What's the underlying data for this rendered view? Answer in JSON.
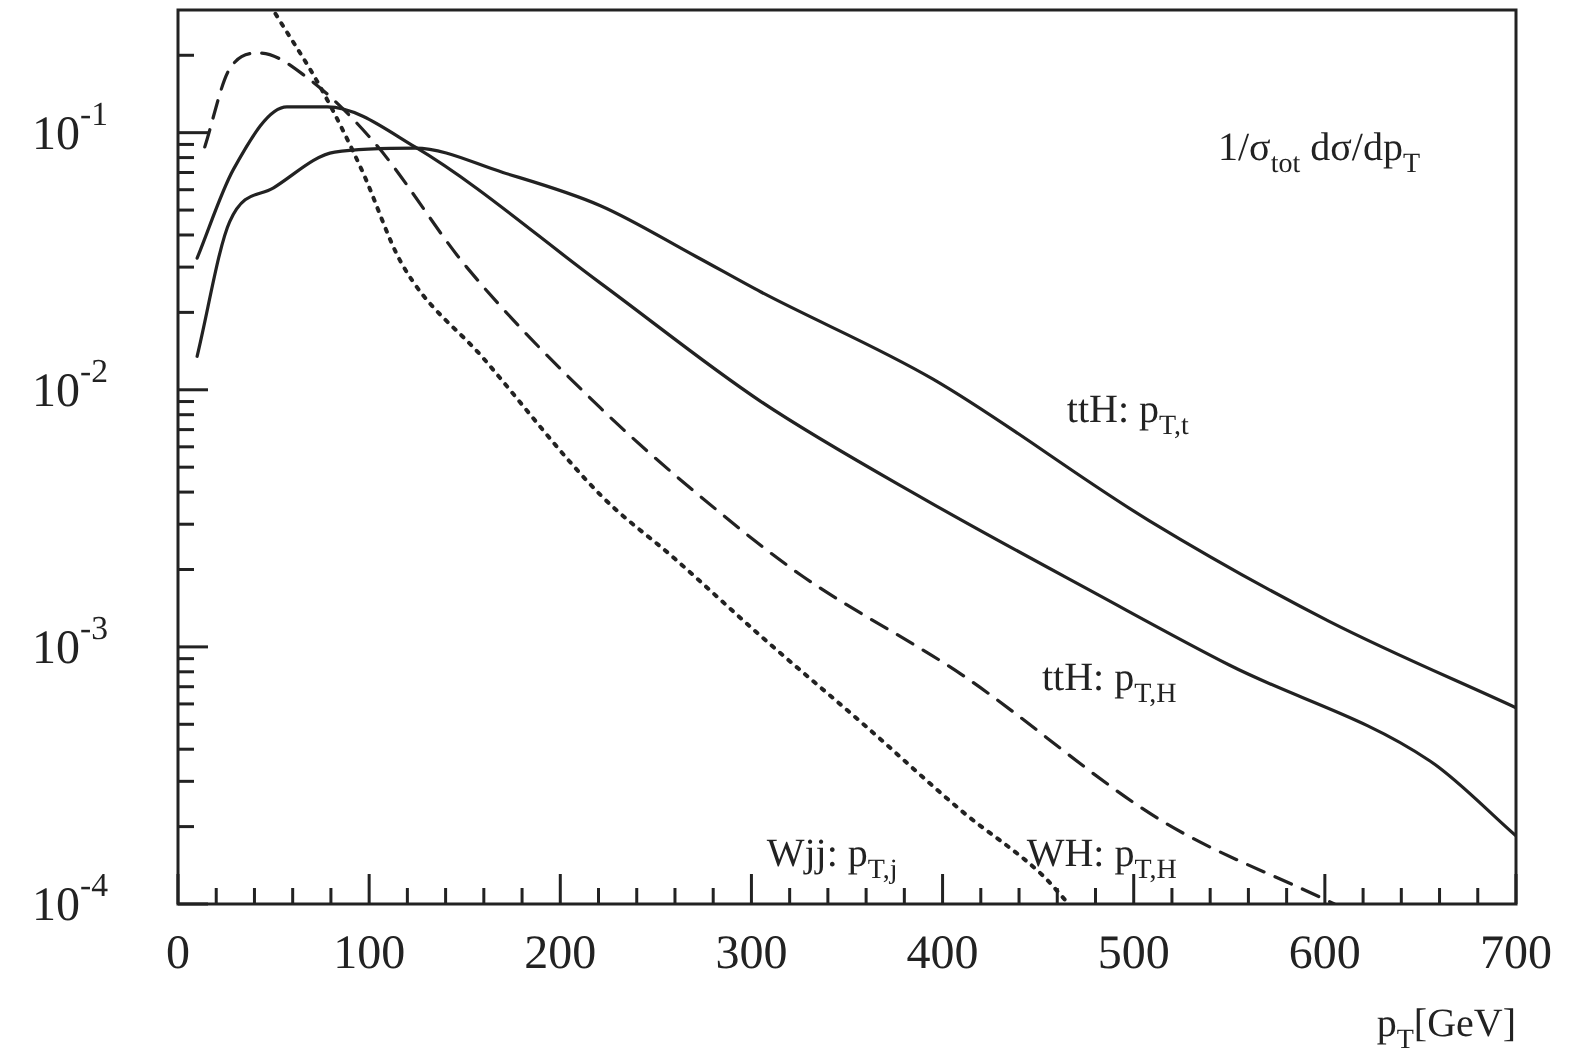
{
  "chart_data": {
    "type": "line",
    "ylabel": "1/σ$_{tot}$ dσ/dp$_{T}$",
    "xlabel": "p$_{T}$[GeV]",
    "log": "y",
    "grid": false,
    "legend": false,
    "marker": "none",
    "xlim": [
      0,
      700
    ],
    "ylim": [
      0.0001,
      0.3
    ],
    "xticks": [
      0,
      {
        "value": 20,
        "label": null
      },
      {
        "value": 40,
        "label": null
      },
      {
        "value": 60,
        "label": null
      },
      {
        "value": 80,
        "label": null
      },
      100,
      {
        "value": 120,
        "label": null
      },
      {
        "value": 140,
        "label": null
      },
      {
        "value": 160,
        "label": null
      },
      {
        "value": 180,
        "label": null
      },
      200,
      {
        "value": 220,
        "label": null
      },
      {
        "value": 240,
        "label": null
      },
      {
        "value": 260,
        "label": null
      },
      {
        "value": 280,
        "label": null
      },
      300,
      {
        "value": 320,
        "label": null
      },
      {
        "value": 340,
        "label": null
      },
      {
        "value": 360,
        "label": null
      },
      {
        "value": 380,
        "label": null
      },
      400,
      {
        "value": 420,
        "label": null
      },
      {
        "value": 440,
        "label": null
      },
      {
        "value": 460,
        "label": null
      },
      {
        "value": 480,
        "label": null
      },
      500,
      {
        "value": 520,
        "label": null
      },
      {
        "value": 540,
        "label": null
      },
      {
        "value": 560,
        "label": null
      },
      {
        "value": 580,
        "label": null
      },
      600,
      {
        "value": 620,
        "label": null
      },
      {
        "value": 640,
        "label": null
      },
      {
        "value": 660,
        "label": null
      },
      {
        "value": 680,
        "label": null
      },
      700
    ],
    "yticks": [
      {
        "value": 0.0001,
        "label": "10$^{-4}$"
      },
      {
        "value": 0.0002,
        "label": null
      },
      {
        "value": 0.0003,
        "label": null
      },
      {
        "value": 0.0004,
        "label": null
      },
      {
        "value": 0.0005,
        "label": null
      },
      {
        "value": 0.0006,
        "label": null
      },
      {
        "value": 0.0007,
        "label": null
      },
      {
        "value": 0.0008,
        "label": null
      },
      {
        "value": 0.0009,
        "label": null
      },
      {
        "value": 0.001,
        "label": "10$^{-3}$"
      },
      {
        "value": 0.002,
        "label": null
      },
      {
        "value": 0.003,
        "label": null
      },
      {
        "value": 0.004,
        "label": null
      },
      {
        "value": 0.005,
        "label": null
      },
      {
        "value": 0.006,
        "label": null
      },
      {
        "value": 0.007,
        "label": null
      },
      {
        "value": 0.008,
        "label": null
      },
      {
        "value": 0.009,
        "label": null
      },
      {
        "value": 0.01,
        "label": "10$^{-2}$"
      },
      {
        "value": 0.02,
        "label": null
      },
      {
        "value": 0.03,
        "label": null
      },
      {
        "value": 0.04,
        "label": null
      },
      {
        "value": 0.05,
        "label": null
      },
      {
        "value": 0.06,
        "label": null
      },
      {
        "value": 0.07,
        "label": null
      },
      {
        "value": 0.08,
        "label": null
      },
      {
        "value": 0.09,
        "label": null
      },
      {
        "value": 0.1,
        "label": "10$^{-1}$"
      },
      {
        "value": 0.2,
        "label": null
      }
    ],
    "series": [
      {
        "name": "ttH: p$_{T,t}$",
        "color": "#222222",
        "line_style": "solid",
        "x": [
          10,
          27,
          50,
          82,
          124,
          170,
          221,
          271,
          305,
          395,
          508,
          602,
          700
        ],
        "values": [
          0.0135,
          0.045,
          0.061,
          0.084,
          0.087,
          0.07,
          0.052,
          0.033,
          0.024,
          0.011,
          0.0031,
          0.00126,
          0.00058
        ]
      },
      {
        "name": "ttH: p$_{T,H}$",
        "color": "#222222",
        "line_style": "solid",
        "x": [
          10,
          29,
          57,
          78,
          124,
          221,
          305,
          392,
          481,
          550,
          655,
          700
        ],
        "values": [
          0.0325,
          0.072,
          0.126,
          0.126,
          0.088,
          0.026,
          0.009,
          0.0037,
          0.0016,
          0.00085,
          0.00036,
          0.000184
        ]
      },
      {
        "name": "WH: p$_{T,H}$",
        "color": "#222222",
        "line_style": "dashed",
        "x": [
          14,
          27,
          43,
          67,
          103,
          151,
          221,
          282,
          326,
          410,
          515,
          599,
          605
        ],
        "values": [
          0.088,
          0.177,
          0.204,
          0.165,
          0.091,
          0.03,
          0.0085,
          0.0034,
          0.0019,
          0.00078,
          0.00021,
          0.000105,
          0.0001
        ]
      },
      {
        "name": "Wjj: p$_{T,j}$",
        "color": "#222222",
        "line_style": "dotted",
        "x": [
          51,
          75,
          96,
          117,
          160,
          221,
          260,
          305,
          360,
          410,
          452,
          466
        ],
        "values": [
          0.29,
          0.148,
          0.072,
          0.031,
          0.0132,
          0.0039,
          0.0022,
          0.0011,
          0.00049,
          0.00023,
          0.00013,
          0.0001
        ]
      }
    ]
  }
}
